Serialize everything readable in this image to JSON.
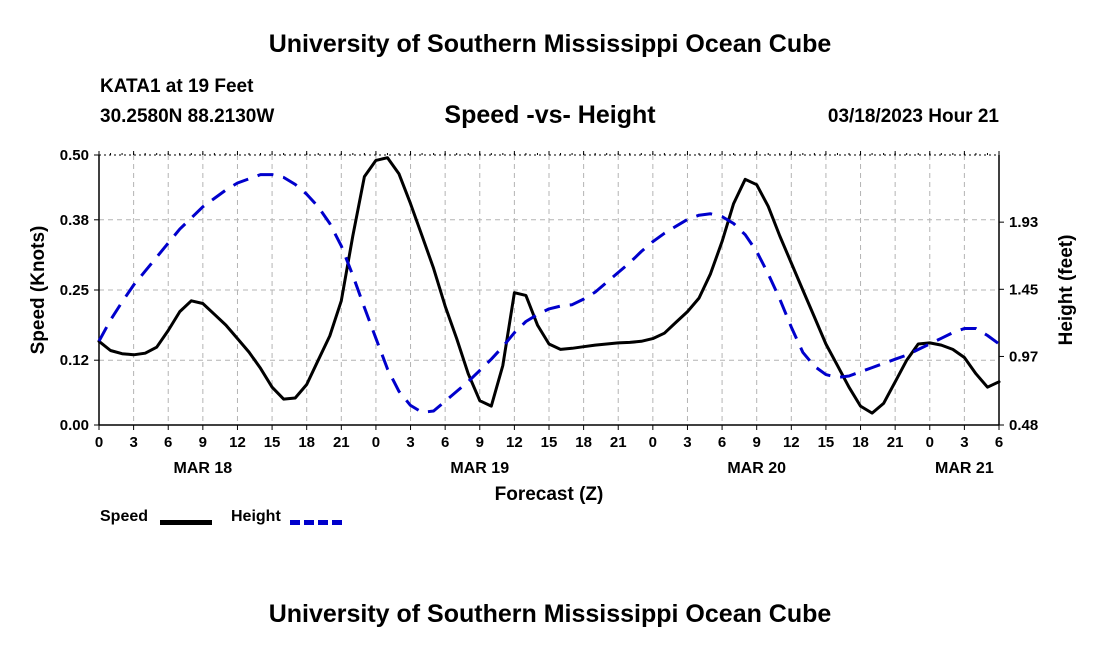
{
  "header": {
    "title": "University of Southern Mississippi Ocean Cube",
    "station": "KATA1 at 19 Feet",
    "coordinates": "30.2580N  88.2130W",
    "subtitle": "Speed -vs- Height",
    "datetime": "03/18/2023 Hour 21"
  },
  "footer": {
    "title": "University of Southern Mississippi Ocean Cube"
  },
  "legend": {
    "speed_label": "Speed",
    "height_label": "Height"
  },
  "colors": {
    "speed": "#000000",
    "height": "#0000cc",
    "grid": "#b4b4b4"
  },
  "chart_data": {
    "type": "line",
    "xlabel": "Forecast (Z)",
    "ylabel_left": "Speed (Knots)",
    "ylabel_right": "Height (feet)",
    "x_unit": "hours since 03/18/2023 00Z",
    "xlim": [
      0,
      78
    ],
    "ylim_left": [
      0,
      0.5
    ],
    "ylim_right": [
      0.48,
      2.41
    ],
    "yticks_left": [
      0.0,
      0.12,
      0.25,
      0.38,
      0.5
    ],
    "yticks_left_labels": [
      "0.00",
      "0.12",
      "0.25",
      "0.38",
      "0.50"
    ],
    "yticks_right": [
      0.48,
      0.97,
      1.45,
      1.93
    ],
    "yticks_right_labels": [
      "0.48",
      "0.97",
      "1.45",
      "1.93"
    ],
    "xticks_labels": [
      "0",
      "3",
      "6",
      "9",
      "12",
      "15",
      "18",
      "21",
      "0",
      "3",
      "6",
      "9",
      "12",
      "15",
      "18",
      "21",
      "0",
      "3",
      "6",
      "9",
      "12",
      "15",
      "18",
      "21",
      "0",
      "3",
      "6"
    ],
    "day_labels": [
      {
        "x": 9,
        "label": "MAR 18"
      },
      {
        "x": 33,
        "label": "MAR 19"
      },
      {
        "x": 57,
        "label": "MAR 20"
      },
      {
        "x": 75,
        "label": "MAR 21"
      }
    ],
    "grid": true,
    "series": [
      {
        "name": "Speed",
        "axis": "left",
        "style": "solid",
        "x": [
          0,
          1,
          2,
          3,
          4,
          5,
          6,
          7,
          8,
          9,
          10,
          11,
          12,
          13,
          14,
          15,
          16,
          17,
          18,
          19,
          20,
          21,
          22,
          23,
          24,
          25,
          26,
          27,
          28,
          29,
          30,
          31,
          32,
          33,
          34,
          35,
          36,
          37,
          38,
          39,
          40,
          41,
          42,
          43,
          44,
          45,
          46,
          47,
          48,
          49,
          50,
          51,
          52,
          53,
          54,
          55,
          56,
          57,
          58,
          59,
          60,
          61,
          62,
          63,
          64,
          65,
          66,
          67,
          68,
          69,
          70,
          71,
          72,
          73,
          74,
          75,
          76,
          77,
          78
        ],
        "values": [
          0.155,
          0.138,
          0.132,
          0.13,
          0.133,
          0.144,
          0.175,
          0.21,
          0.23,
          0.225,
          0.205,
          0.185,
          0.16,
          0.135,
          0.105,
          0.07,
          0.048,
          0.05,
          0.075,
          0.12,
          0.165,
          0.23,
          0.35,
          0.46,
          0.49,
          0.495,
          0.465,
          0.41,
          0.35,
          0.29,
          0.22,
          0.16,
          0.095,
          0.045,
          0.035,
          0.11,
          0.245,
          0.24,
          0.185,
          0.15,
          0.14,
          0.142,
          0.145,
          0.148,
          0.15,
          0.152,
          0.153,
          0.155,
          0.16,
          0.17,
          0.19,
          0.21,
          0.235,
          0.28,
          0.34,
          0.41,
          0.455,
          0.445,
          0.405,
          0.35,
          0.3,
          0.25,
          0.2,
          0.15,
          0.11,
          0.07,
          0.035,
          0.022,
          0.04,
          0.08,
          0.12,
          0.15,
          0.152,
          0.148,
          0.14,
          0.125,
          0.095,
          0.07,
          0.08
        ]
      },
      {
        "name": "Height",
        "axis": "right",
        "style": "dashed",
        "x": [
          0,
          1,
          2,
          3,
          4,
          5,
          6,
          7,
          8,
          9,
          10,
          11,
          12,
          13,
          14,
          15,
          16,
          17,
          18,
          19,
          20,
          21,
          22,
          23,
          24,
          25,
          26,
          27,
          28,
          29,
          30,
          31,
          32,
          33,
          34,
          35,
          36,
          37,
          38,
          39,
          40,
          41,
          42,
          43,
          44,
          45,
          46,
          47,
          48,
          49,
          50,
          51,
          52,
          53,
          54,
          55,
          56,
          57,
          58,
          59,
          60,
          61,
          62,
          63,
          64,
          65,
          66,
          67,
          68,
          69,
          70,
          71,
          72,
          73,
          74,
          75,
          76,
          77,
          78
        ],
        "values": [
          1.08,
          1.23,
          1.36,
          1.48,
          1.58,
          1.68,
          1.78,
          1.88,
          1.96,
          2.04,
          2.1,
          2.16,
          2.21,
          2.24,
          2.27,
          2.27,
          2.25,
          2.2,
          2.13,
          2.04,
          1.92,
          1.76,
          1.55,
          1.32,
          1.1,
          0.88,
          0.72,
          0.62,
          0.57,
          0.58,
          0.65,
          0.72,
          0.79,
          0.87,
          0.95,
          1.04,
          1.14,
          1.22,
          1.27,
          1.31,
          1.33,
          1.34,
          1.38,
          1.43,
          1.5,
          1.57,
          1.64,
          1.72,
          1.79,
          1.85,
          1.9,
          1.95,
          1.98,
          1.99,
          1.97,
          1.92,
          1.84,
          1.72,
          1.56,
          1.38,
          1.18,
          1.0,
          0.9,
          0.84,
          0.82,
          0.83,
          0.86,
          0.89,
          0.92,
          0.95,
          0.98,
          1.02,
          1.06,
          1.1,
          1.14,
          1.17,
          1.17,
          1.12,
          1.06
        ]
      }
    ]
  }
}
